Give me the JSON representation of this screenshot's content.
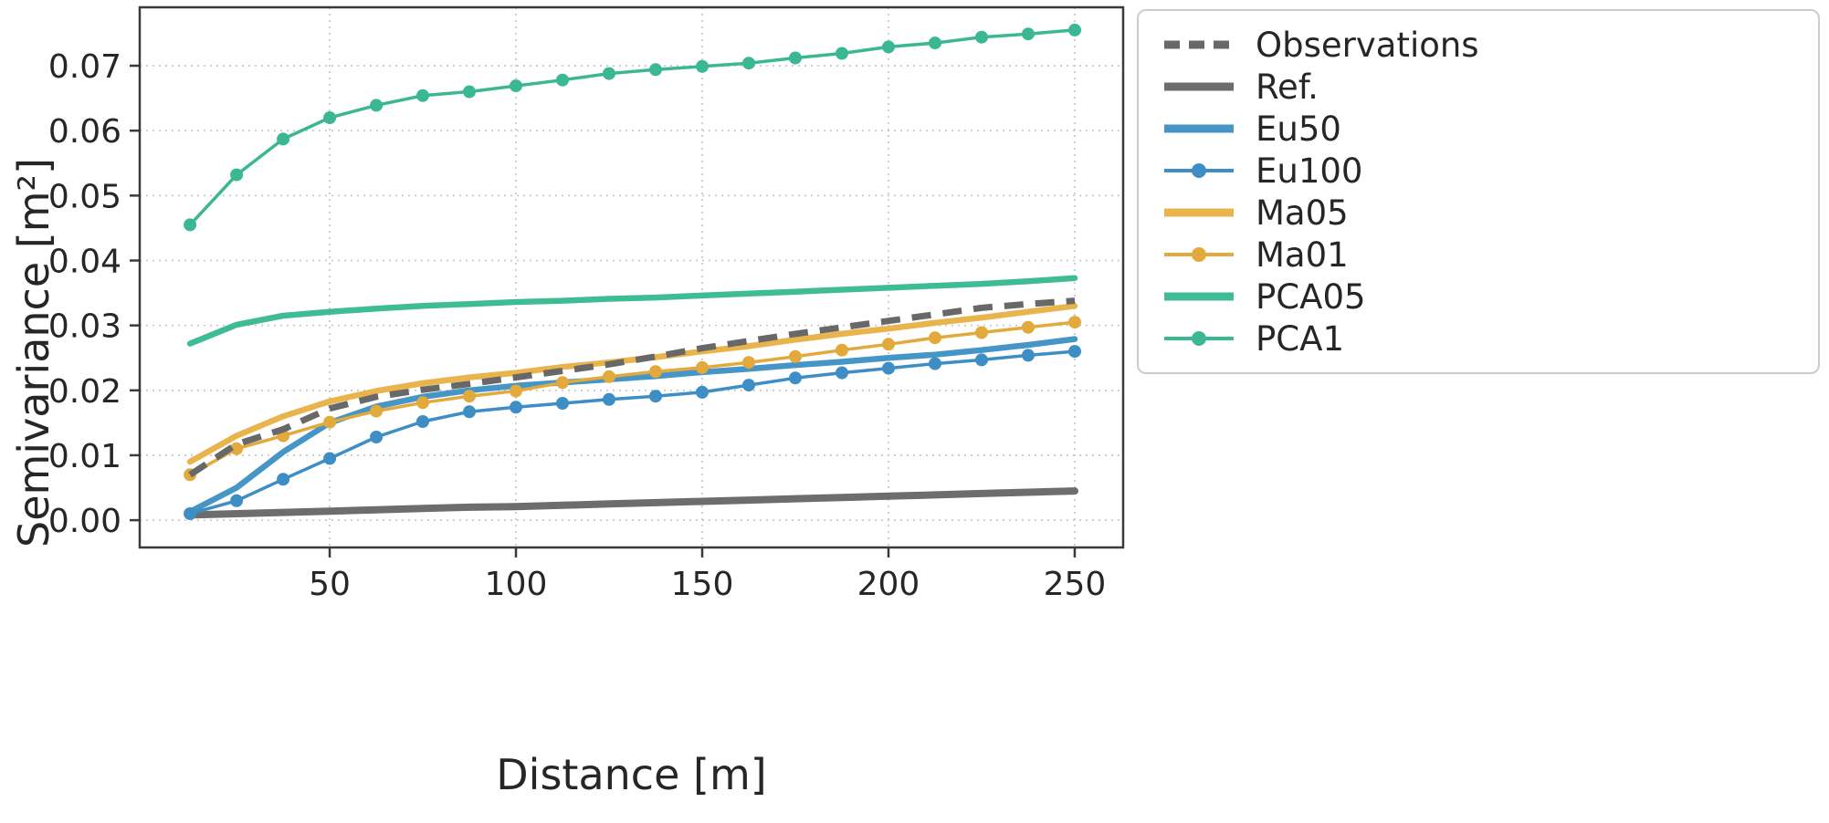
{
  "figure": {
    "background": "#ffffff",
    "axes_edge_color": "#3a3a3a",
    "grid_color": "#c9c9c9",
    "text_color": "#262626"
  },
  "chart_data": {
    "type": "line",
    "title": "",
    "xlabel": "Distance [m]",
    "ylabel": "Semivariance [m²]",
    "xlim": [
      -1,
      263
    ],
    "ylim": [
      -0.0042,
      0.079
    ],
    "xticks": [
      50,
      100,
      150,
      200,
      250
    ],
    "xtick_labels": [
      "50",
      "100",
      "150",
      "200",
      "250"
    ],
    "yticks": [
      0.0,
      0.01,
      0.02,
      0.03,
      0.04,
      0.05,
      0.06,
      0.07
    ],
    "ytick_labels": [
      "0.00",
      "0.01",
      "0.02",
      "0.03",
      "0.04",
      "0.05",
      "0.06",
      "0.07"
    ],
    "grid": "dotted",
    "legend_position": "outside-upper-right",
    "x": [
      12.5,
      25,
      37.5,
      50,
      62.5,
      75,
      87.5,
      100,
      112.5,
      125,
      137.5,
      150,
      162.5,
      175,
      187.5,
      200,
      212.5,
      225,
      237.5,
      250
    ],
    "series": [
      {
        "name": "Observations",
        "color": "#686868",
        "style": "dashed",
        "width": 7,
        "markers": false,
        "values": [
          0.007,
          0.0117,
          0.014,
          0.0172,
          0.019,
          0.0201,
          0.021,
          0.022,
          0.023,
          0.024,
          0.0252,
          0.0265,
          0.0276,
          0.0287,
          0.0297,
          0.0307,
          0.0317,
          0.0327,
          0.0333,
          0.0338
        ]
      },
      {
        "name": "Ref.",
        "color": "#6d6d6d",
        "style": "solid",
        "width": 8,
        "markers": false,
        "values": [
          0.0008,
          0.001,
          0.0012,
          0.0014,
          0.0016,
          0.0018,
          0.002,
          0.0021,
          0.0023,
          0.0025,
          0.0027,
          0.0029,
          0.0031,
          0.0033,
          0.0035,
          0.0037,
          0.0039,
          0.0041,
          0.0043,
          0.0045
        ]
      },
      {
        "name": "Eu50",
        "color": "#4595c7",
        "style": "solid",
        "width": 6.5,
        "markers": false,
        "values": [
          0.0013,
          0.005,
          0.0105,
          0.015,
          0.0175,
          0.019,
          0.02,
          0.0207,
          0.0212,
          0.0217,
          0.0222,
          0.0228,
          0.0233,
          0.0239,
          0.0244,
          0.025,
          0.0255,
          0.0262,
          0.027,
          0.0279
        ]
      },
      {
        "name": "Eu100",
        "color": "#3d8ec4",
        "style": "solid",
        "width": 3.5,
        "markers": true,
        "values": [
          0.001,
          0.003,
          0.0063,
          0.0095,
          0.0128,
          0.0152,
          0.0167,
          0.0174,
          0.018,
          0.0186,
          0.0191,
          0.0197,
          0.0208,
          0.0219,
          0.0227,
          0.0234,
          0.0241,
          0.0247,
          0.0254,
          0.026
        ]
      },
      {
        "name": "Ma05",
        "color": "#e8b44b",
        "style": "solid",
        "width": 6.5,
        "markers": false,
        "values": [
          0.009,
          0.013,
          0.016,
          0.0183,
          0.0199,
          0.0211,
          0.022,
          0.0227,
          0.0236,
          0.0243,
          0.0251,
          0.026,
          0.0268,
          0.0278,
          0.0287,
          0.0295,
          0.0304,
          0.0312,
          0.0321,
          0.033
        ]
      },
      {
        "name": "Ma01",
        "color": "#e2a93c",
        "style": "solid",
        "width": 3.5,
        "markers": true,
        "values": [
          0.007,
          0.011,
          0.013,
          0.0151,
          0.0168,
          0.0181,
          0.0191,
          0.0199,
          0.0212,
          0.0221,
          0.0229,
          0.0235,
          0.0243,
          0.0252,
          0.0262,
          0.0271,
          0.0281,
          0.0289,
          0.0297,
          0.0305
        ]
      },
      {
        "name": "PCA05",
        "color": "#3fbc96",
        "style": "solid",
        "width": 6.5,
        "markers": false,
        "values": [
          0.0272,
          0.0301,
          0.0315,
          0.0321,
          0.0326,
          0.033,
          0.0333,
          0.0336,
          0.0338,
          0.0341,
          0.0343,
          0.0346,
          0.0349,
          0.0352,
          0.0355,
          0.0358,
          0.0361,
          0.0364,
          0.0368,
          0.0373
        ]
      },
      {
        "name": "PCA1",
        "color": "#3bb893",
        "style": "solid",
        "width": 3.5,
        "markers": true,
        "values": [
          0.0455,
          0.0532,
          0.0587,
          0.062,
          0.0639,
          0.0654,
          0.066,
          0.0669,
          0.0678,
          0.0688,
          0.0694,
          0.0699,
          0.0704,
          0.0712,
          0.0719,
          0.0729,
          0.0735,
          0.0744,
          0.0749,
          0.0755
        ]
      }
    ]
  }
}
